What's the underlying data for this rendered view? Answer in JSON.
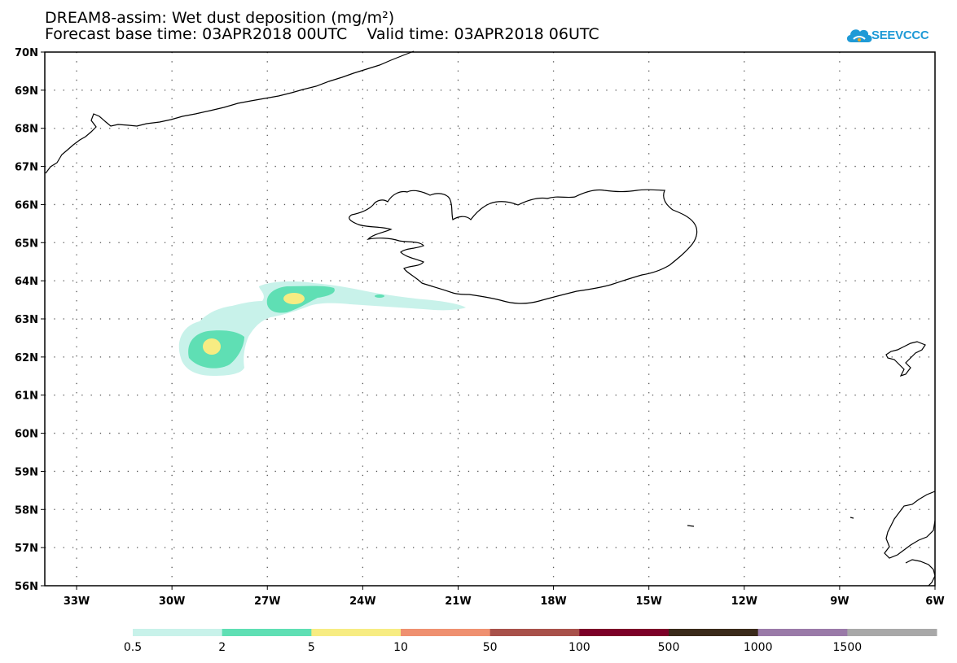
{
  "title": {
    "line1": "DREAM8-assim: Wet dust deposition (mg/m²)",
    "line2": "Forecast base time: 03APR2018 00UTC    Valid time: 03APR2018 06UTC"
  },
  "logo": {
    "text": "SEEVCCC",
    "icon": "cloud-icon",
    "color": "#1f9ad6"
  },
  "map": {
    "lon_range": [
      -34,
      -6
    ],
    "lat_range": [
      56,
      70
    ],
    "lat_labels": [
      "56N",
      "57N",
      "58N",
      "59N",
      "60N",
      "61N",
      "62N",
      "63N",
      "64N",
      "65N",
      "66N",
      "67N",
      "68N",
      "69N",
      "70N"
    ],
    "lon_labels": [
      "33W",
      "30W",
      "27W",
      "24W",
      "21W",
      "18W",
      "15W",
      "12W",
      "9W",
      "6W"
    ],
    "grid": "dotted"
  },
  "legend": {
    "colors": [
      "#c8f2ea",
      "#5fdfb4",
      "#f7ec82",
      "#ef9070",
      "#a8514a",
      "#7c0028",
      "#3a2a1a",
      "#9a7aa8",
      "#a8a8a8"
    ],
    "labels": [
      "0.5",
      "2",
      "5",
      "10",
      "50",
      "100",
      "500",
      "1000",
      "1500"
    ]
  }
}
